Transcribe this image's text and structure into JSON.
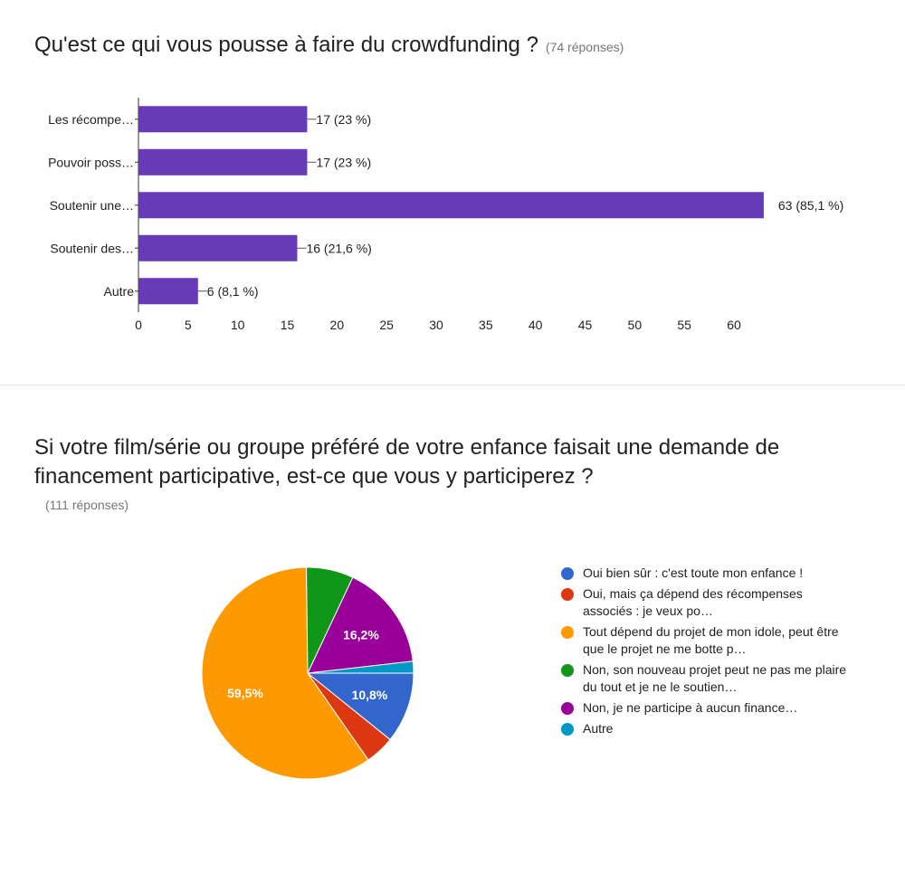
{
  "question1": {
    "title": "Qu'est ce qui vous pousse à faire du crowdfunding ?",
    "responses": "(74 réponses)"
  },
  "question2": {
    "title": "Si votre film/série ou groupe préféré de votre enfance faisait une demande de financement participative, est-ce que vous y participerez ?",
    "responses": "(111 réponses)"
  },
  "chart_data": [
    {
      "type": "bar",
      "orientation": "horizontal",
      "categories": [
        "Les récompe…",
        "Pouvoir poss…",
        "Soutenir une…",
        "Soutenir des…",
        "Autre"
      ],
      "values": [
        17,
        17,
        63,
        16,
        6
      ],
      "data_labels": [
        "17 (23 %)",
        "17 (23 %)",
        "63 (85,1 %)",
        "16 (21,6 %)",
        "6 (8,1 %)"
      ],
      "xticks": [
        0,
        5,
        10,
        15,
        20,
        25,
        30,
        35,
        40,
        45,
        50,
        55,
        60
      ],
      "xlim": [
        0,
        63
      ],
      "bar_color": "#673ab7",
      "grid": false
    },
    {
      "type": "pie",
      "labels": [
        "Oui bien sûr : c'est toute mon enfance !",
        "Oui, mais ça dépend des récompenses associés : je veux po…",
        "Tout dépend du projet de mon idole, peut être que le projet ne me botte p…",
        "Non, son nouveau projet peut ne pas me plaire du tout et je ne le soutien…",
        "Non, je ne participe à aucun finance…",
        "Autre"
      ],
      "values": [
        10.8,
        4.5,
        59.5,
        7.2,
        16.2,
        1.8
      ],
      "slice_labels": [
        "10,8%",
        "",
        "59,5%",
        "",
        "16,2%",
        ""
      ],
      "colors": [
        "#3366cc",
        "#dc3912",
        "#ff9900",
        "#109618",
        "#990099",
        "#0099c6"
      ],
      "legend_position": "right"
    }
  ]
}
